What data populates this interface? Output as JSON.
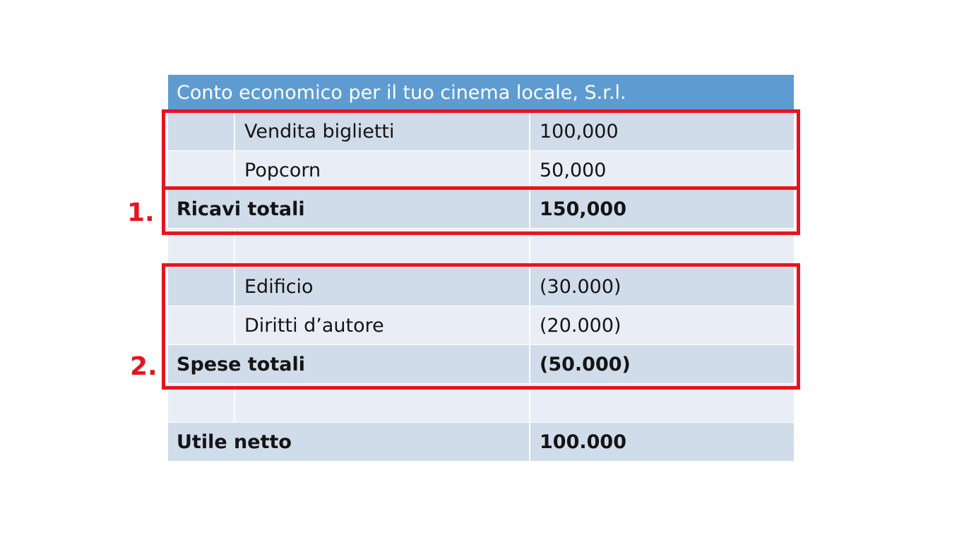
{
  "table": {
    "title": "Conto economico per il tuo cinema locale, S.r.l.",
    "revenue_items": [
      {
        "label": "Vendita biglietti",
        "value": "100,000"
      },
      {
        "label": "Popcorn",
        "value": "50,000"
      }
    ],
    "revenue_total": {
      "label": "Ricavi totali",
      "value": "150,000"
    },
    "expense_items": [
      {
        "label": "Edificio",
        "value": "(30.000)"
      },
      {
        "label": "Diritti d’autore",
        "value": "(20.000)"
      }
    ],
    "expense_total": {
      "label": "Spese totali",
      "value": "(50.000)"
    },
    "net_income": {
      "label": "Utile netto",
      "value": "100.000"
    }
  },
  "annotations": {
    "marker_1": "1.",
    "marker_2": "2.",
    "highlight_color": "#e8141c"
  },
  "colors": {
    "header_blue": "#5e9bd1",
    "band_dark": "#d0dcea",
    "band_light": "#e9eef6"
  }
}
